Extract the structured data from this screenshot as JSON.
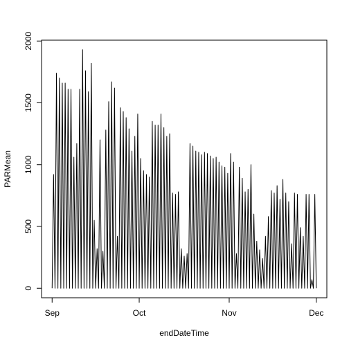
{
  "chart_data": {
    "type": "line",
    "x_label": "endDateTime",
    "y_label": "PARMean",
    "x": [
      0,
      0.5,
      1,
      1.5,
      2,
      2.5,
      3,
      3.5,
      4,
      4.5,
      5,
      5.5,
      6,
      6.5,
      7,
      7.5,
      8,
      8.5,
      9,
      9.5,
      10,
      10.5,
      11,
      11.5,
      12,
      12.5,
      13,
      13.5,
      14,
      14.5,
      15,
      15.5,
      16,
      16.5,
      17,
      17.5,
      18,
      18.5,
      19,
      19.5,
      20,
      20.5,
      21,
      21.5,
      22,
      22.5,
      23,
      23.5,
      24,
      24.5,
      25,
      25.5,
      26,
      26.5,
      27,
      27.5,
      28,
      28.5,
      29,
      29.5,
      30,
      30.5,
      31,
      31.5,
      32,
      32.5,
      33,
      33.5,
      34,
      34.5,
      35,
      35.5,
      36,
      36.5,
      37,
      37.5,
      38,
      38.5,
      39,
      39.5,
      40,
      40.5,
      41,
      41.5,
      42,
      42.5,
      43,
      43.5,
      44,
      44.5,
      45,
      45.5,
      46,
      46.5,
      47,
      47.5,
      48,
      48.5,
      49,
      49.5,
      50,
      50.5,
      51,
      51.5,
      52,
      52.5,
      53,
      53.5,
      54,
      54.5,
      55,
      55.5,
      56,
      56.5,
      57,
      57.5,
      58,
      58.5,
      59,
      59.5,
      60,
      60.5,
      61,
      61.5,
      62,
      62.5,
      63,
      63.5,
      64,
      64.5,
      65,
      65.5,
      66,
      66.5,
      67,
      67.5,
      68,
      68.5,
      69,
      69.5,
      70,
      70.5,
      71,
      71.5,
      72,
      72.5,
      73,
      73.5,
      74,
      74.5,
      75,
      75.5,
      76,
      76.5,
      77,
      77.5,
      78,
      78.5,
      79,
      79.5,
      80,
      80.5,
      81,
      81.5,
      82,
      82.5,
      83,
      83.5,
      84,
      84.5,
      85,
      85.5,
      86,
      86.5,
      87,
      87.5,
      88,
      88.5,
      89,
      89.5,
      90,
      90.5,
      91
    ],
    "values": [
      0,
      920,
      0,
      1740,
      0,
      1700,
      0,
      1660,
      0,
      1660,
      0,
      1610,
      0,
      1610,
      0,
      1060,
      0,
      1170,
      0,
      1610,
      0,
      1930,
      0,
      1760,
      0,
      1590,
      0,
      1820,
      0,
      550,
      0,
      320,
      0,
      1200,
      0,
      300,
      0,
      1280,
      0,
      1510,
      0,
      1670,
      0,
      1620,
      0,
      420,
      0,
      1460,
      0,
      1430,
      0,
      1380,
      0,
      1290,
      0,
      1110,
      0,
      1230,
      0,
      1410,
      0,
      1050,
      0,
      950,
      0,
      920,
      0,
      900,
      0,
      1350,
      0,
      1320,
      0,
      1320,
      0,
      1410,
      0,
      1300,
      0,
      1230,
      0,
      1250,
      0,
      770,
      0,
      760,
      0,
      780,
      0,
      320,
      0,
      260,
      0,
      280,
      0,
      1170,
      0,
      1150,
      0,
      1110,
      0,
      1100,
      0,
      1080,
      0,
      1100,
      0,
      1090,
      0,
      1070,
      0,
      1050,
      0,
      1060,
      0,
      1020,
      0,
      990,
      0,
      980,
      0,
      930,
      0,
      1090,
      0,
      1020,
      0,
      280,
      0,
      980,
      0,
      890,
      0,
      780,
      0,
      800,
      0,
      1000,
      0,
      600,
      0,
      380,
      0,
      310,
      0,
      240,
      0,
      420,
      0,
      580,
      0,
      790,
      0,
      770,
      0,
      830,
      0,
      720,
      0,
      880,
      0,
      770,
      0,
      700,
      0,
      360,
      0,
      770,
      0,
      760,
      0,
      490,
      0,
      420,
      0,
      760,
      0,
      760,
      0,
      70,
      0,
      760,
      0
    ],
    "color": "#000000",
    "xlim": [
      -3.64,
      94.64
    ],
    "xticks": [
      {
        "value": 0,
        "label": "Sep"
      },
      {
        "value": 30,
        "label": "Oct"
      },
      {
        "value": 61,
        "label": "Nov"
      },
      {
        "value": 91,
        "label": "Dec"
      }
    ],
    "ylim": [
      -77,
      2007
    ],
    "yticks": [
      0,
      500,
      1000,
      1500,
      2000
    ]
  }
}
